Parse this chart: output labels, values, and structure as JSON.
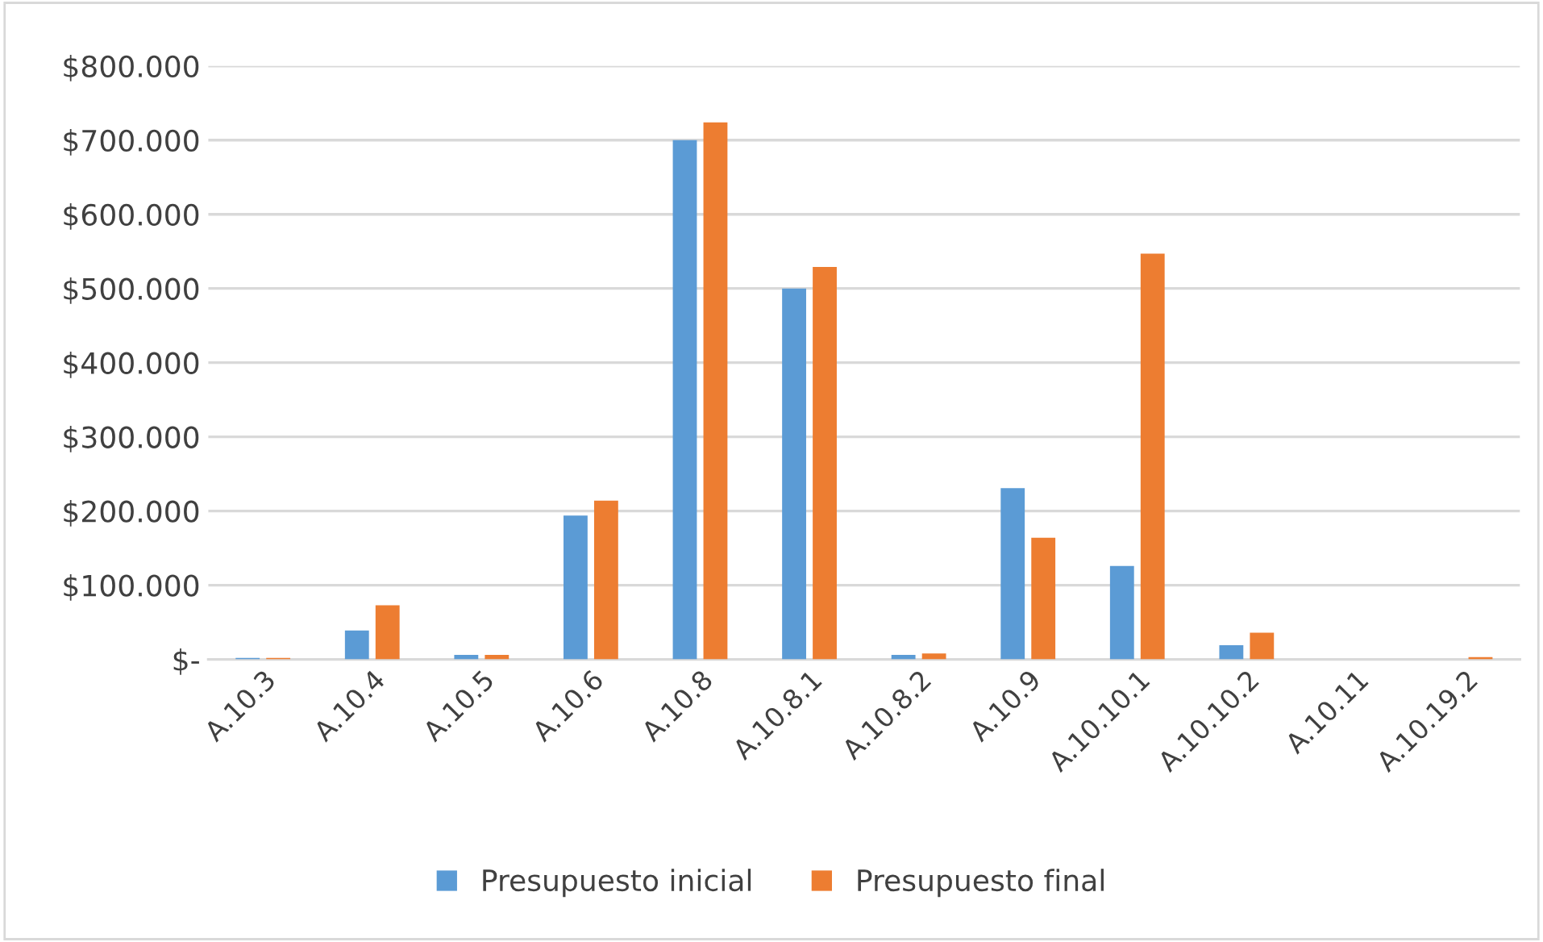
{
  "chart_data": {
    "type": "bar",
    "categories": [
      "A.10.3",
      "A.10.4",
      "A.10.5",
      "A.10.6",
      "A.10.8",
      "A.10.8.1",
      "A.10.8.2",
      "A.10.9",
      "A.10.10.1",
      "A.10.10.2",
      "A.10.11",
      "A.10.19.2"
    ],
    "series": [
      {
        "name": "Presupuesto inicial",
        "color": "#5b9bd5",
        "values": [
          2000,
          39000,
          6000,
          194000,
          700000,
          500000,
          6000,
          231000,
          126000,
          19000,
          0,
          0
        ]
      },
      {
        "name": "Presupuesto final",
        "color": "#ed7d31",
        "values": [
          2000,
          73000,
          6000,
          214000,
          724000,
          529000,
          8000,
          164000,
          547000,
          36000,
          0,
          3000
        ]
      }
    ],
    "ylim": [
      0,
      800000
    ],
    "yticks": [
      {
        "value": 0,
        "label": "$-"
      },
      {
        "value": 100000,
        "label": "$100.000"
      },
      {
        "value": 200000,
        "label": "$200.000"
      },
      {
        "value": 300000,
        "label": "$300.000"
      },
      {
        "value": 400000,
        "label": "$400.000"
      },
      {
        "value": 500000,
        "label": "$500.000"
      },
      {
        "value": 600000,
        "label": "$600.000"
      },
      {
        "value": 700000,
        "label": "$700.000"
      },
      {
        "value": 800000,
        "label": "$800.000"
      }
    ],
    "grid": "y",
    "legend": "bottom"
  }
}
